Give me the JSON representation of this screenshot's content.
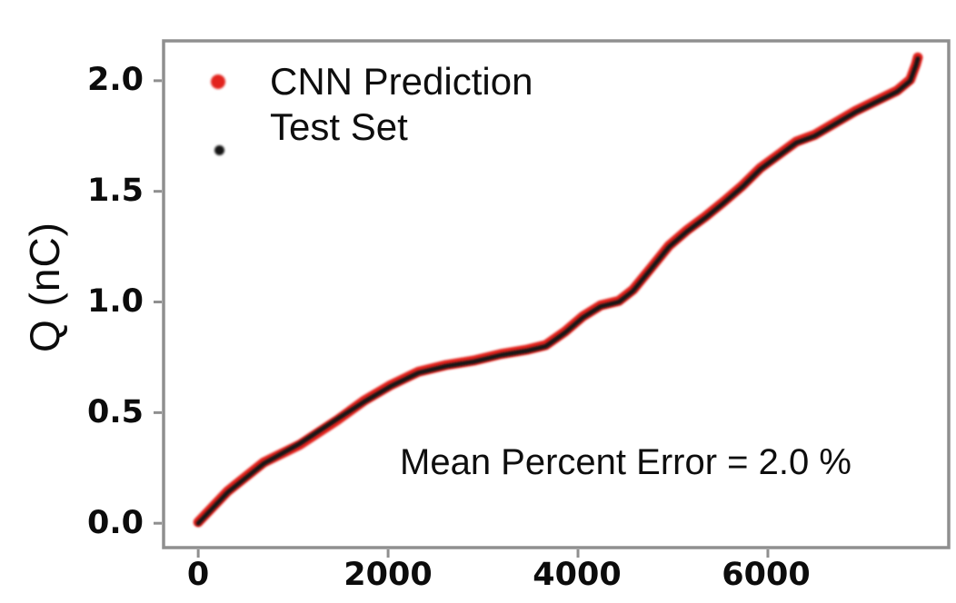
{
  "figure": {
    "y_axis_label": "Q (nC)",
    "annotation_text": "Mean Percent Error = 2.0 %"
  },
  "chart_data": {
    "type": "scatter",
    "title": "",
    "xlabel": "",
    "ylabel": "Q (nC)",
    "xlim": [
      -365,
      7905
    ],
    "ylim": [
      -0.11,
      2.18
    ],
    "xticks": [
      0,
      2000,
      4000,
      6000
    ],
    "yticks": [
      0.0,
      0.5,
      1.0,
      1.5,
      2.0
    ],
    "xtick_labels": [
      "0",
      "2000",
      "4000",
      "6000"
    ],
    "ytick_labels": [
      "0.0",
      "0.5",
      "1.0",
      "1.5",
      "2.0"
    ],
    "grid": false,
    "legend_position": "upper left",
    "annotation": "Mean Percent Error = 2.0 %",
    "spine_color": "#8f8f8f",
    "series": [
      {
        "name": "CNN Prediction",
        "color": "#e2231d",
        "marker": "dot",
        "points": [
          [
            0,
            0.005
          ],
          [
            310,
            0.145
          ],
          [
            690,
            0.275
          ],
          [
            1070,
            0.355
          ],
          [
            1460,
            0.465
          ],
          [
            1750,
            0.555
          ],
          [
            2030,
            0.625
          ],
          [
            2320,
            0.685
          ],
          [
            2610,
            0.715
          ],
          [
            2900,
            0.735
          ],
          [
            3190,
            0.765
          ],
          [
            3470,
            0.785
          ],
          [
            3660,
            0.805
          ],
          [
            3860,
            0.865
          ],
          [
            4050,
            0.935
          ],
          [
            4240,
            0.985
          ],
          [
            4430,
            1.005
          ],
          [
            4580,
            1.055
          ],
          [
            4770,
            1.155
          ],
          [
            4960,
            1.255
          ],
          [
            5150,
            1.325
          ],
          [
            5340,
            1.385
          ],
          [
            5540,
            1.455
          ],
          [
            5730,
            1.525
          ],
          [
            5920,
            1.605
          ],
          [
            6110,
            1.665
          ],
          [
            6300,
            1.725
          ],
          [
            6490,
            1.755
          ],
          [
            6690,
            1.805
          ],
          [
            6930,
            1.865
          ],
          [
            7170,
            1.915
          ],
          [
            7360,
            1.955
          ],
          [
            7500,
            2.005
          ],
          [
            7560,
            2.075
          ],
          [
            7580,
            2.105
          ]
        ]
      },
      {
        "name": "Test Set",
        "color": "#151515",
        "marker": "dot",
        "points": [
          [
            0,
            0.0
          ],
          [
            310,
            0.14
          ],
          [
            690,
            0.27
          ],
          [
            1070,
            0.36
          ],
          [
            1460,
            0.47
          ],
          [
            1750,
            0.55
          ],
          [
            2030,
            0.62
          ],
          [
            2320,
            0.68
          ],
          [
            2610,
            0.71
          ],
          [
            2900,
            0.73
          ],
          [
            3190,
            0.76
          ],
          [
            3470,
            0.78
          ],
          [
            3660,
            0.8
          ],
          [
            3860,
            0.86
          ],
          [
            4050,
            0.93
          ],
          [
            4240,
            0.98
          ],
          [
            4430,
            1.0
          ],
          [
            4580,
            1.05
          ],
          [
            4770,
            1.15
          ],
          [
            4960,
            1.25
          ],
          [
            5150,
            1.32
          ],
          [
            5340,
            1.38
          ],
          [
            5540,
            1.45
          ],
          [
            5730,
            1.52
          ],
          [
            5920,
            1.6
          ],
          [
            6110,
            1.66
          ],
          [
            6300,
            1.72
          ],
          [
            6490,
            1.75
          ],
          [
            6690,
            1.8
          ],
          [
            6930,
            1.86
          ],
          [
            7170,
            1.91
          ],
          [
            7360,
            1.95
          ],
          [
            7500,
            2.0
          ],
          [
            7560,
            2.07
          ],
          [
            7580,
            2.1
          ]
        ]
      }
    ]
  }
}
